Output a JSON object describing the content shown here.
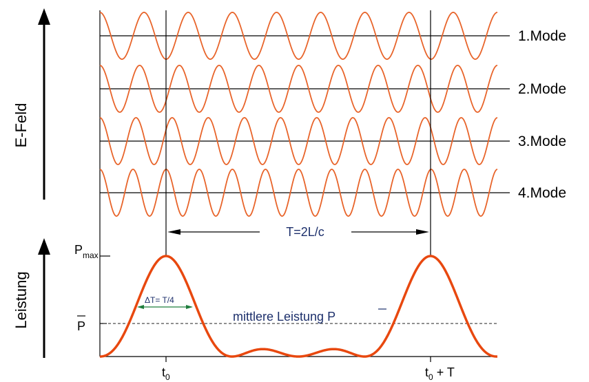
{
  "colors": {
    "wave": "#e8642a",
    "power": "#e8480f",
    "axis": "#000000",
    "annotation": "#1c2f6b"
  },
  "modes": [
    {
      "label": "1.Mode",
      "cycles": 9,
      "phase": 0
    },
    {
      "label": "2.Mode",
      "cycles": 10,
      "phase": 0
    },
    {
      "label": "3.Mode",
      "cycles": 11,
      "phase": 0
    },
    {
      "label": "4.Mode",
      "cycles": 12,
      "phase": 0
    }
  ],
  "efield_axis_label": "E-Feld",
  "power_axis_label": "Leistung",
  "period_label": "T=2L/c",
  "pmax": {
    "main": "P",
    "sub": "max"
  },
  "pmean_tick_label": "P",
  "mean_power_label": "mittlere Leistung P",
  "delta_t_label": "ΔT= T/4",
  "t0": {
    "main": "t",
    "sub": "0"
  },
  "t0_plus_t": {
    "main": "t",
    "sub": "0",
    "suffix": " + T"
  },
  "power_curve": {
    "modes": 4,
    "x_range": [
      -0.272,
      1.266
    ],
    "peaks_at": [
      0,
      1
    ],
    "dt_over_t": 0.25
  }
}
